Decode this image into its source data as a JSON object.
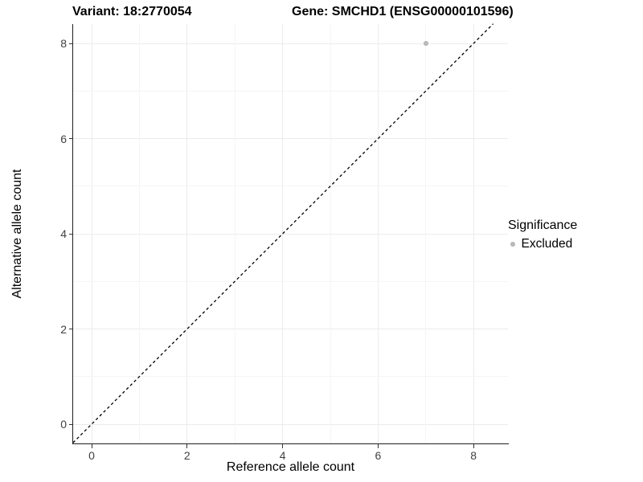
{
  "chart_data": {
    "type": "scatter",
    "title_left": "Variant: 18:2770054",
    "title_right": "Gene: SMCHD1 (ENSG00000101596)",
    "xlabel": "Reference allele count",
    "ylabel": "Alternative allele count",
    "x_ticks": [
      0,
      2,
      4,
      6,
      8
    ],
    "y_ticks": [
      0,
      2,
      4,
      6,
      8
    ],
    "xlim": [
      -0.39,
      8.72
    ],
    "ylim": [
      -0.41,
      8.41
    ],
    "grid": {
      "major": true,
      "minor": true
    },
    "points": [
      {
        "x": 7,
        "y": 8,
        "series": "Excluded"
      }
    ],
    "reference_line": {
      "equation": "y = x",
      "style": "dashed",
      "color": "#000000"
    },
    "legend": {
      "title": "Significance",
      "position": "right",
      "entries": [
        {
          "label": "Excluded",
          "color": "#b9b9b9"
        }
      ]
    },
    "colors": {
      "point": "#b9b9b9",
      "grid_major": "#ebebeb",
      "grid_minor": "#f5f5f5",
      "axis_line": "#1f1f1f",
      "tick_label": "#404040",
      "text": "#000000",
      "background": "#ffffff"
    }
  }
}
